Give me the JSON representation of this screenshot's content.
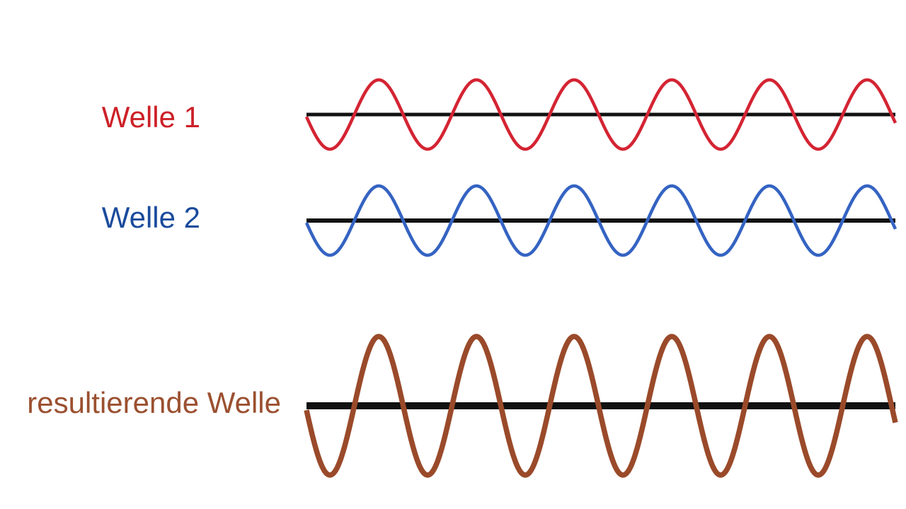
{
  "waves": [
    {
      "label": "Welle 1",
      "color": "#d42433",
      "amplitude": 1,
      "cycles": 6
    },
    {
      "label": "Welle 2",
      "color": "#3463c2",
      "amplitude": 1,
      "cycles": 6
    },
    {
      "label": "resultierende Welle",
      "color": "#9a4a2a",
      "amplitude": 2,
      "cycles": 6
    }
  ],
  "colors": {
    "axis": "#111111",
    "label_wave1": "#cc2027",
    "label_wave2": "#1a4b9c",
    "label_result": "#9b5030"
  }
}
